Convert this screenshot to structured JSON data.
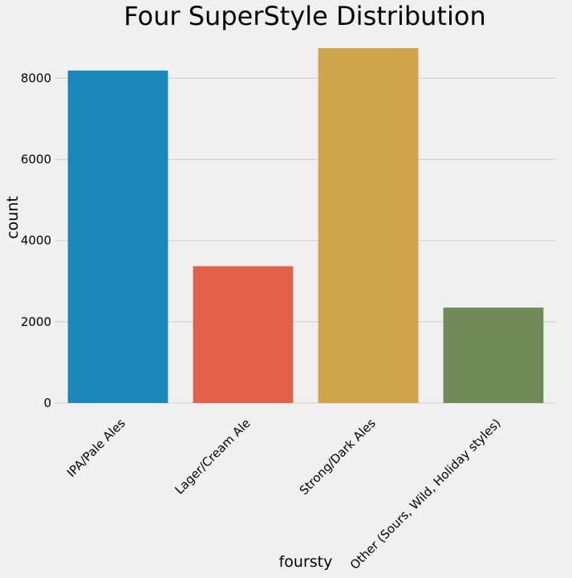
{
  "chart_data": {
    "type": "bar",
    "title": "Four SuperStyle Distribution",
    "xlabel": "foursty",
    "ylabel": "count",
    "categories": [
      "IPA/Pale Ales",
      "Lager/Cream Ale",
      "Strong/Dark Ales",
      "Other (Sours, Wild, Holiday styles)"
    ],
    "values": [
      8190,
      3370,
      8740,
      2350
    ],
    "colors": [
      "#1a87bb",
      "#e3604b",
      "#cfa44b",
      "#6f8a58"
    ],
    "yticks": [
      0,
      2000,
      4000,
      6000,
      8000
    ],
    "ytick_labels": [
      "0",
      "2000",
      "4000",
      "6000",
      "8000"
    ],
    "ylim": [
      0,
      8800
    ],
    "grid": "horizontal",
    "background": "#f0f0f0"
  }
}
